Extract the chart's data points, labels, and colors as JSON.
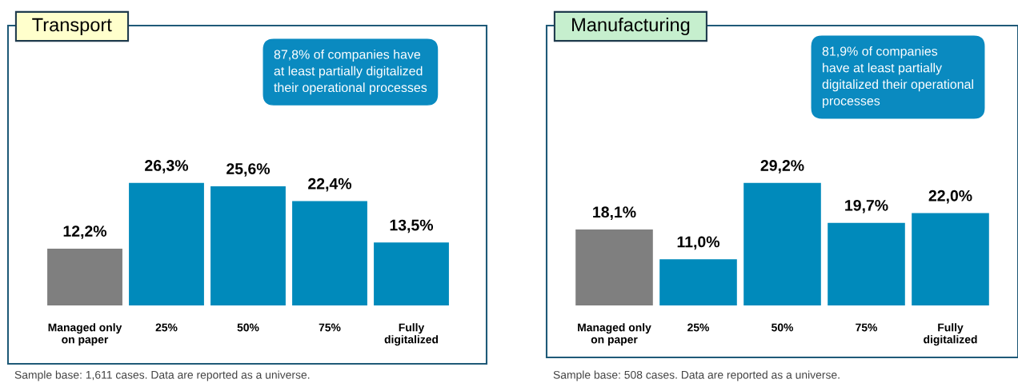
{
  "chart_data": [
    {
      "type": "bar",
      "title": "Transport",
      "categories": [
        "Managed only\non paper",
        "25%",
        "50%",
        "75%",
        "Fully\ndigitalized"
      ],
      "values": [
        12.2,
        26.3,
        25.6,
        22.4,
        13.5
      ],
      "colors": [
        "#7f7f7f",
        "#008abb",
        "#008abb",
        "#008abb",
        "#008abb"
      ],
      "value_labels": [
        "12,2%",
        "26,3%",
        "25,6%",
        "22,4%",
        "13,5%"
      ],
      "annotations": [
        "87,8% of companies have\nat least partially digitalized\ntheir operational processes",
        "Sample base: 1,611 cases. Data are reported as a universe."
      ]
    },
    {
      "type": "bar",
      "title": "Manufacturing",
      "categories": [
        "Managed only\non paper",
        "25%",
        "50%",
        "75%",
        "Fully\ndigitalized"
      ],
      "values": [
        18.1,
        11.0,
        29.2,
        19.7,
        22.0
      ],
      "colors": [
        "#7f7f7f",
        "#008abb",
        "#008abb",
        "#008abb",
        "#008abb"
      ],
      "value_labels": [
        "18,1%",
        "11,0%",
        "29,2%",
        "19,7%",
        "22,0%"
      ],
      "annotations": [
        "81,9% of companies\nhave at least partially\ndigitalized their operational\nprocesses",
        "Sample base: 508 cases. Data are reported as a universe."
      ]
    }
  ]
}
